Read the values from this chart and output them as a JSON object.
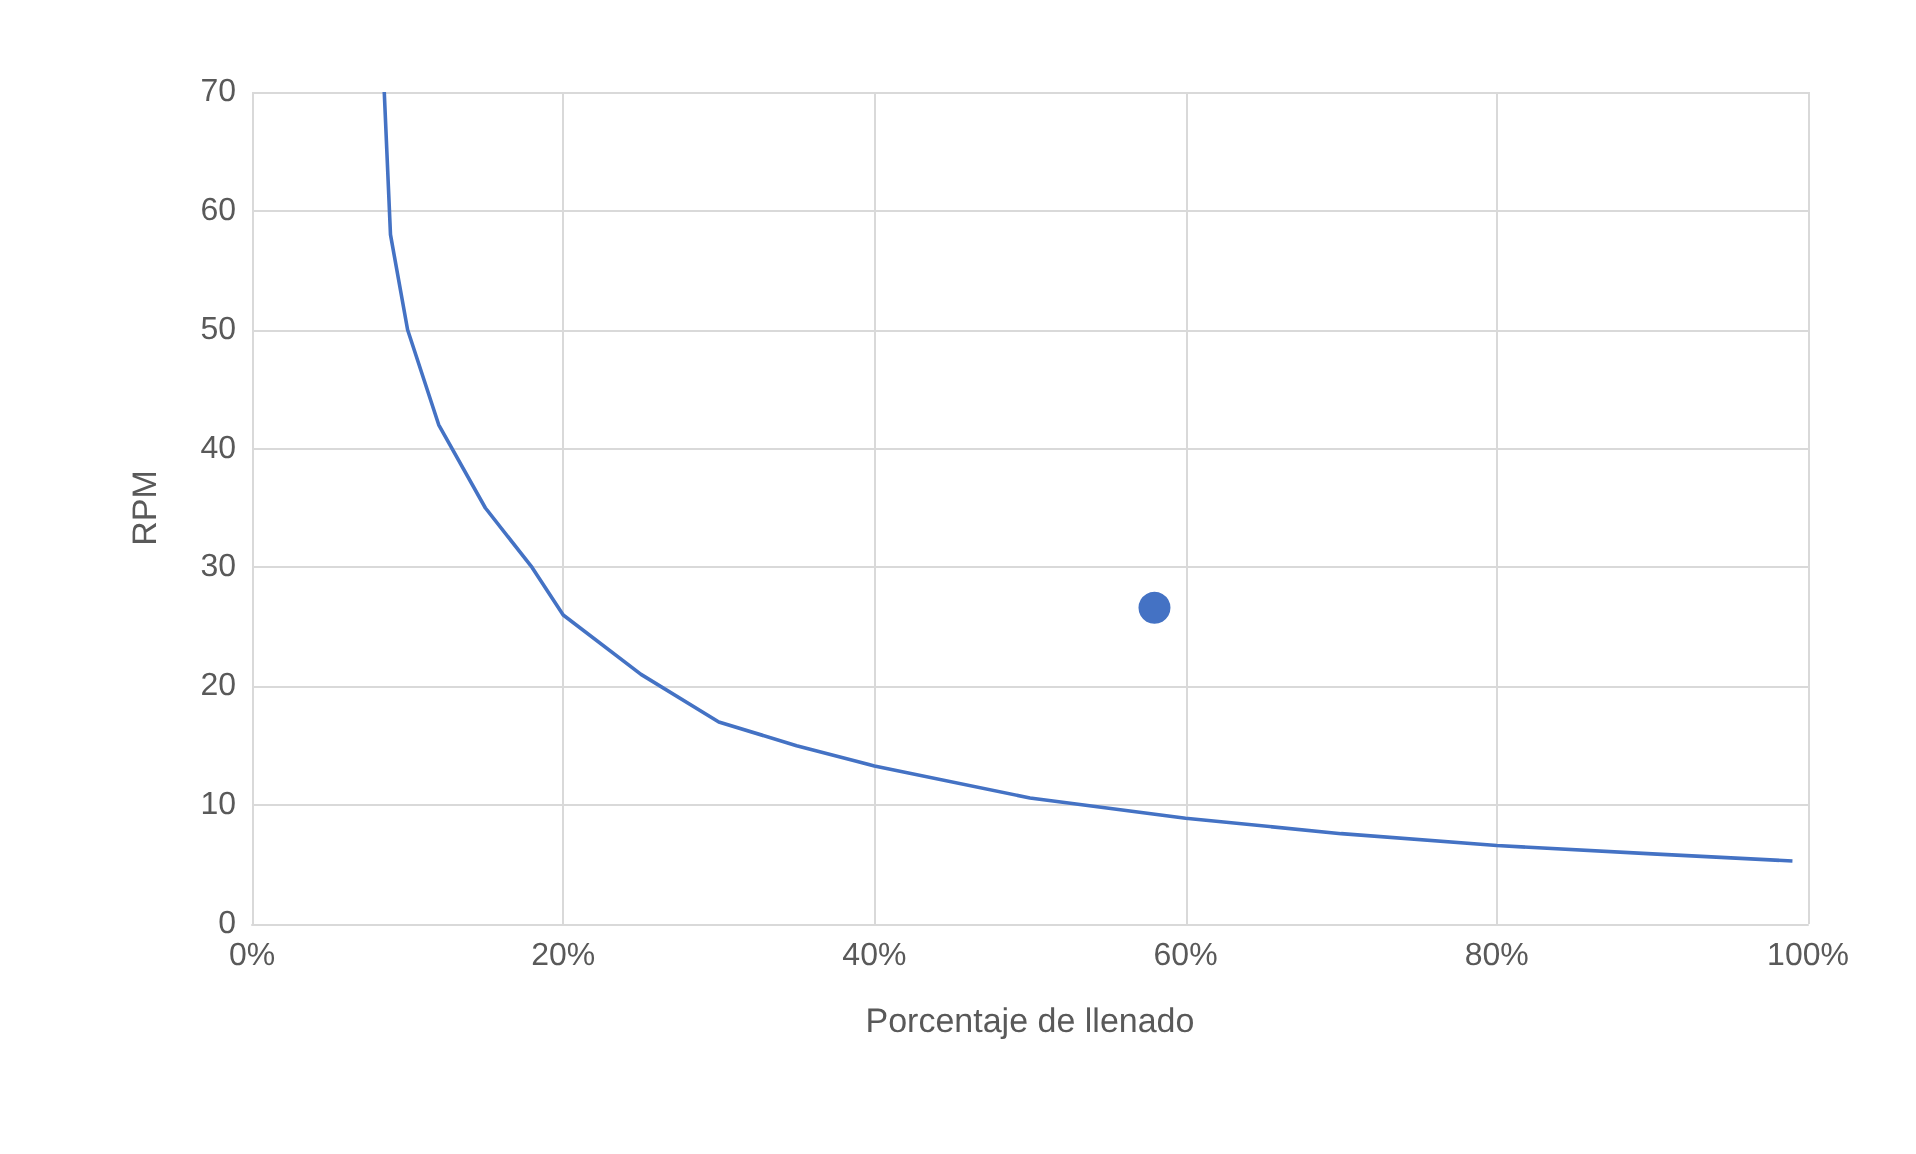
{
  "chart_data": {
    "type": "line",
    "xlabel": "Porcentaje de llenado",
    "ylabel": "RPM",
    "series": [
      {
        "color": "#4472c4",
        "marker": "none",
        "x": [
          8.5,
          8.9,
          10,
          12,
          15,
          18,
          20,
          25,
          30,
          35,
          40,
          50,
          60,
          70,
          80,
          90,
          99
        ],
        "values": [
          70,
          58,
          50,
          42,
          35,
          30,
          26,
          21,
          17,
          15,
          13.3,
          10.6,
          8.9,
          7.6,
          6.6,
          5.9,
          5.3
        ]
      },
      {
        "type": "scatter",
        "color": "#4472c4",
        "marker": "circle",
        "x": [
          58
        ],
        "values": [
          26.6
        ]
      }
    ],
    "xlim": [
      0,
      100
    ],
    "xticks": [
      {
        "value": 0,
        "label": "0%"
      },
      {
        "value": 20,
        "label": "20%"
      },
      {
        "value": 40,
        "label": "40%"
      },
      {
        "value": 60,
        "label": "60%"
      },
      {
        "value": 80,
        "label": "80%"
      },
      {
        "value": 100,
        "label": "100%"
      }
    ],
    "ylim": [
      0,
      70
    ],
    "yticks": [
      0,
      10,
      20,
      30,
      40,
      50,
      60,
      70
    ],
    "grid": true
  }
}
